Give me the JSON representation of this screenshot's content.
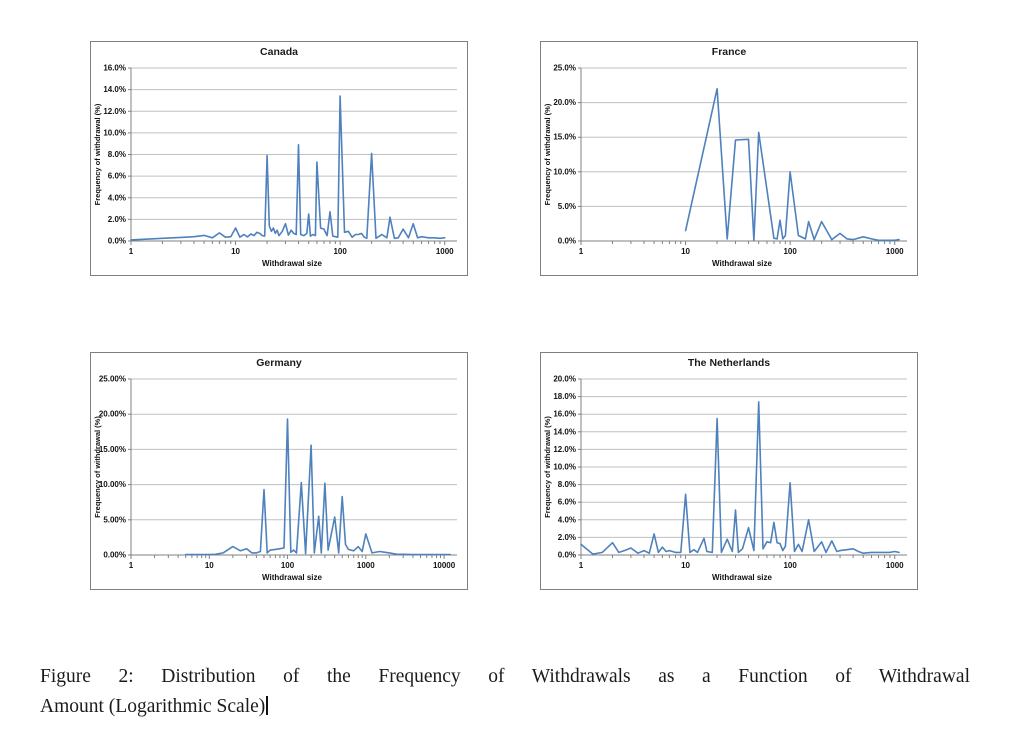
{
  "colors": {
    "line": "#4f81bd",
    "gridline": "#c0c0c0",
    "axis": "#808080",
    "panel_border": "#7f7f7f",
    "title_text": "#1a1a1a"
  },
  "caption": {
    "line1": "Figure 2:  Distribution of the Frequency of Withdrawals as a Function of Withdrawal",
    "line2": "Amount (Logarithmic Scale)"
  },
  "chart_data": [
    {
      "type": "line",
      "title": "Canada",
      "xlabel": "Withdrawal size",
      "ylabel": "Frequency of withdrawal (%)",
      "grid": true,
      "legend": false,
      "x_axis": {
        "scale": "log",
        "min": 1,
        "max": 1200,
        "tick_values": [
          1,
          10,
          100,
          1000
        ],
        "tick_labels": [
          "1",
          "10",
          "100",
          "1000"
        ]
      },
      "y_axis": {
        "min": 0,
        "max": 16,
        "tick_step": 2,
        "tick_labels": [
          "0.0%",
          "2.0%",
          "4.0%",
          "6.0%",
          "8.0%",
          "10.0%",
          "12.0%",
          "14.0%",
          "16.0%"
        ]
      },
      "series": {
        "x": [
          1,
          2,
          3,
          4,
          5,
          6,
          7,
          8,
          9,
          10,
          11,
          12,
          13,
          14,
          15,
          16,
          17,
          18,
          19,
          20,
          21,
          22,
          23,
          24,
          25,
          26,
          28,
          30,
          32,
          34,
          36,
          38,
          40,
          42,
          45,
          48,
          50,
          52,
          55,
          58,
          60,
          65,
          70,
          75,
          80,
          85,
          90,
          95,
          100,
          110,
          120,
          130,
          140,
          150,
          160,
          170,
          180,
          200,
          220,
          250,
          280,
          300,
          330,
          360,
          400,
          450,
          500,
          550,
          600,
          700,
          800,
          900,
          1000
        ],
        "y": [
          0.1,
          0.25,
          0.33,
          0.4,
          0.52,
          0.3,
          0.75,
          0.35,
          0.4,
          1.2,
          0.35,
          0.6,
          0.38,
          0.65,
          0.5,
          0.8,
          0.7,
          0.5,
          0.45,
          7.9,
          1.4,
          0.9,
          1.2,
          0.7,
          1.0,
          0.5,
          0.9,
          1.6,
          0.55,
          1.0,
          0.7,
          0.6,
          8.9,
          0.6,
          0.5,
          0.7,
          2.5,
          0.45,
          0.6,
          0.5,
          7.3,
          1.2,
          1.1,
          0.5,
          2.7,
          0.45,
          0.4,
          0.35,
          13.4,
          0.8,
          0.9,
          0.35,
          0.6,
          0.6,
          0.7,
          0.35,
          0.25,
          8.1,
          0.25,
          0.6,
          0.3,
          2.2,
          0.25,
          0.3,
          1.1,
          0.3,
          1.6,
          0.3,
          0.4,
          0.3,
          0.3,
          0.25,
          0.3
        ]
      }
    },
    {
      "type": "line",
      "title": "France",
      "xlabel": "Withdrawal size",
      "ylabel": "Frequency of withdrawal (%)",
      "grid": true,
      "legend": false,
      "x_axis": {
        "scale": "log",
        "min": 1,
        "max": 1200,
        "tick_values": [
          1,
          10,
          100,
          1000
        ],
        "tick_labels": [
          "1",
          "10",
          "100",
          "1000"
        ]
      },
      "y_axis": {
        "min": 0,
        "max": 25,
        "tick_step": 5,
        "tick_labels": [
          "0.0%",
          "5.0%",
          "10.0%",
          "15.0%",
          "20.0%",
          "25.0%"
        ]
      },
      "series": {
        "x": [
          10,
          20,
          25,
          30,
          40,
          45,
          50,
          70,
          75,
          80,
          85,
          90,
          100,
          120,
          140,
          150,
          170,
          200,
          250,
          300,
          350,
          400,
          500,
          600,
          700,
          800,
          1000,
          1100
        ],
        "y": [
          1.5,
          22.0,
          0.3,
          14.6,
          14.7,
          0.1,
          15.7,
          0.4,
          0.3,
          3.0,
          0.3,
          0.8,
          10.0,
          0.8,
          0.3,
          2.8,
          0.2,
          2.8,
          0.2,
          1.1,
          0.3,
          0.2,
          0.6,
          0.3,
          0.1,
          0.1,
          0.1,
          0.2
        ]
      }
    },
    {
      "type": "line",
      "title": "Germany",
      "xlabel": "Withdrawal size",
      "ylabel": "Frequency of withdrawal (%)",
      "grid": true,
      "legend": false,
      "x_axis": {
        "scale": "log",
        "min": 1,
        "max": 13000,
        "tick_values": [
          1,
          10,
          100,
          1000,
          10000
        ],
        "tick_labels": [
          "1",
          "10",
          "100",
          "1000",
          "10000"
        ]
      },
      "y_axis": {
        "min": 0,
        "max": 25,
        "tick_step": 5,
        "tick_labels": [
          "0.00%",
          "5.00%",
          "10.00%",
          "15.00%",
          "20.00%",
          "25.00%"
        ]
      },
      "series": {
        "x": [
          5,
          6,
          7,
          8,
          9,
          10,
          12,
          15,
          20,
          25,
          30,
          35,
          40,
          45,
          50,
          55,
          60,
          70,
          80,
          90,
          100,
          110,
          120,
          130,
          150,
          170,
          200,
          220,
          250,
          270,
          300,
          330,
          400,
          450,
          500,
          550,
          600,
          700,
          800,
          900,
          1000,
          1200,
          1500,
          2000,
          2500,
          3000,
          4000,
          5000,
          7000,
          10000,
          12000
        ],
        "y": [
          0.05,
          0.05,
          0.05,
          0.05,
          0.05,
          0.05,
          0.1,
          0.3,
          1.2,
          0.6,
          0.9,
          0.3,
          0.3,
          0.5,
          9.3,
          0.3,
          0.7,
          0.8,
          0.9,
          1.0,
          19.3,
          0.4,
          0.7,
          0.3,
          10.3,
          0.2,
          15.6,
          0.3,
          5.5,
          0.3,
          10.2,
          0.7,
          5.4,
          0.3,
          8.3,
          1.5,
          0.8,
          0.6,
          1.2,
          0.5,
          3.0,
          0.3,
          0.5,
          0.3,
          0.1,
          0.1,
          0.05,
          0.05,
          0.05,
          0.05,
          0.05
        ]
      }
    },
    {
      "type": "line",
      "title": "The Netherlands",
      "xlabel": "Withdrawal size",
      "ylabel": "Frequency of withdrawal (%)",
      "grid": true,
      "legend": false,
      "x_axis": {
        "scale": "log",
        "min": 1,
        "max": 1200,
        "tick_values": [
          1,
          10,
          100,
          1000
        ],
        "tick_labels": [
          "1",
          "10",
          "100",
          "1000"
        ]
      },
      "y_axis": {
        "min": 0,
        "max": 20,
        "tick_step": 2,
        "tick_labels": [
          "0.0%",
          "2.0%",
          "4.0%",
          "6.0%",
          "8.0%",
          "10.0%",
          "12.0%",
          "14.0%",
          "16.0%",
          "18.0%",
          "20.0%"
        ]
      },
      "series": {
        "x": [
          1,
          1.3,
          1.6,
          2,
          2.3,
          2.6,
          3,
          3.5,
          4,
          4.5,
          5,
          5.5,
          6,
          6.5,
          7,
          8,
          9,
          10,
          11,
          12,
          13,
          15,
          16,
          18,
          20,
          22,
          25,
          28,
          30,
          32,
          35,
          40,
          45,
          50,
          55,
          60,
          65,
          70,
          75,
          80,
          85,
          90,
          100,
          110,
          120,
          130,
          150,
          170,
          200,
          220,
          250,
          280,
          300,
          350,
          400,
          450,
          500,
          600,
          700,
          800,
          900,
          1000,
          1100
        ],
        "y": [
          1.2,
          0.1,
          0.3,
          1.4,
          0.3,
          0.5,
          0.8,
          0.2,
          0.5,
          0.2,
          2.4,
          0.3,
          0.9,
          0.4,
          0.5,
          0.3,
          0.3,
          6.9,
          0.3,
          0.6,
          0.3,
          1.9,
          0.4,
          0.3,
          15.5,
          0.3,
          1.8,
          0.4,
          5.1,
          0.3,
          0.7,
          3.1,
          0.5,
          17.4,
          0.7,
          1.5,
          1.4,
          3.7,
          1.4,
          1.3,
          0.5,
          1.0,
          8.2,
          0.4,
          1.2,
          0.4,
          4.0,
          0.4,
          1.5,
          0.3,
          1.6,
          0.4,
          0.5,
          0.6,
          0.7,
          0.4,
          0.2,
          0.3,
          0.3,
          0.3,
          0.3,
          0.4,
          0.3
        ]
      }
    }
  ]
}
